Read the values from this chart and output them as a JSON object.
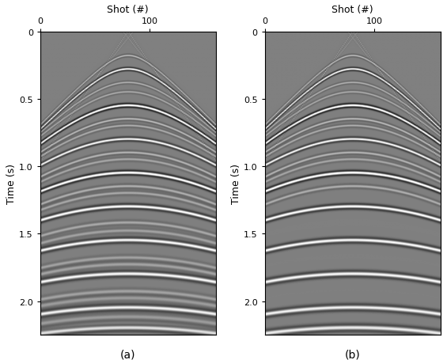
{
  "title_xlabel": "Shot (#)",
  "ylabel": "Time (s)",
  "x_ticks": [
    0,
    100
  ],
  "x_tick_labels": [
    "0",
    "100"
  ],
  "y_ticks": [
    0.0,
    0.5,
    1.0,
    1.5,
    2.0
  ],
  "y_tick_labels": [
    "0",
    "0.5",
    "1.0",
    "1.5",
    "2.0"
  ],
  "xlim": [
    0,
    160
  ],
  "ylim": [
    2.25,
    0.0
  ],
  "label_a": "(a)",
  "label_b": "(b)",
  "n_traces": 161,
  "n_samples": 451,
  "dt": 0.005,
  "figsize": [
    5.65,
    4.56
  ],
  "dpi": 100
}
